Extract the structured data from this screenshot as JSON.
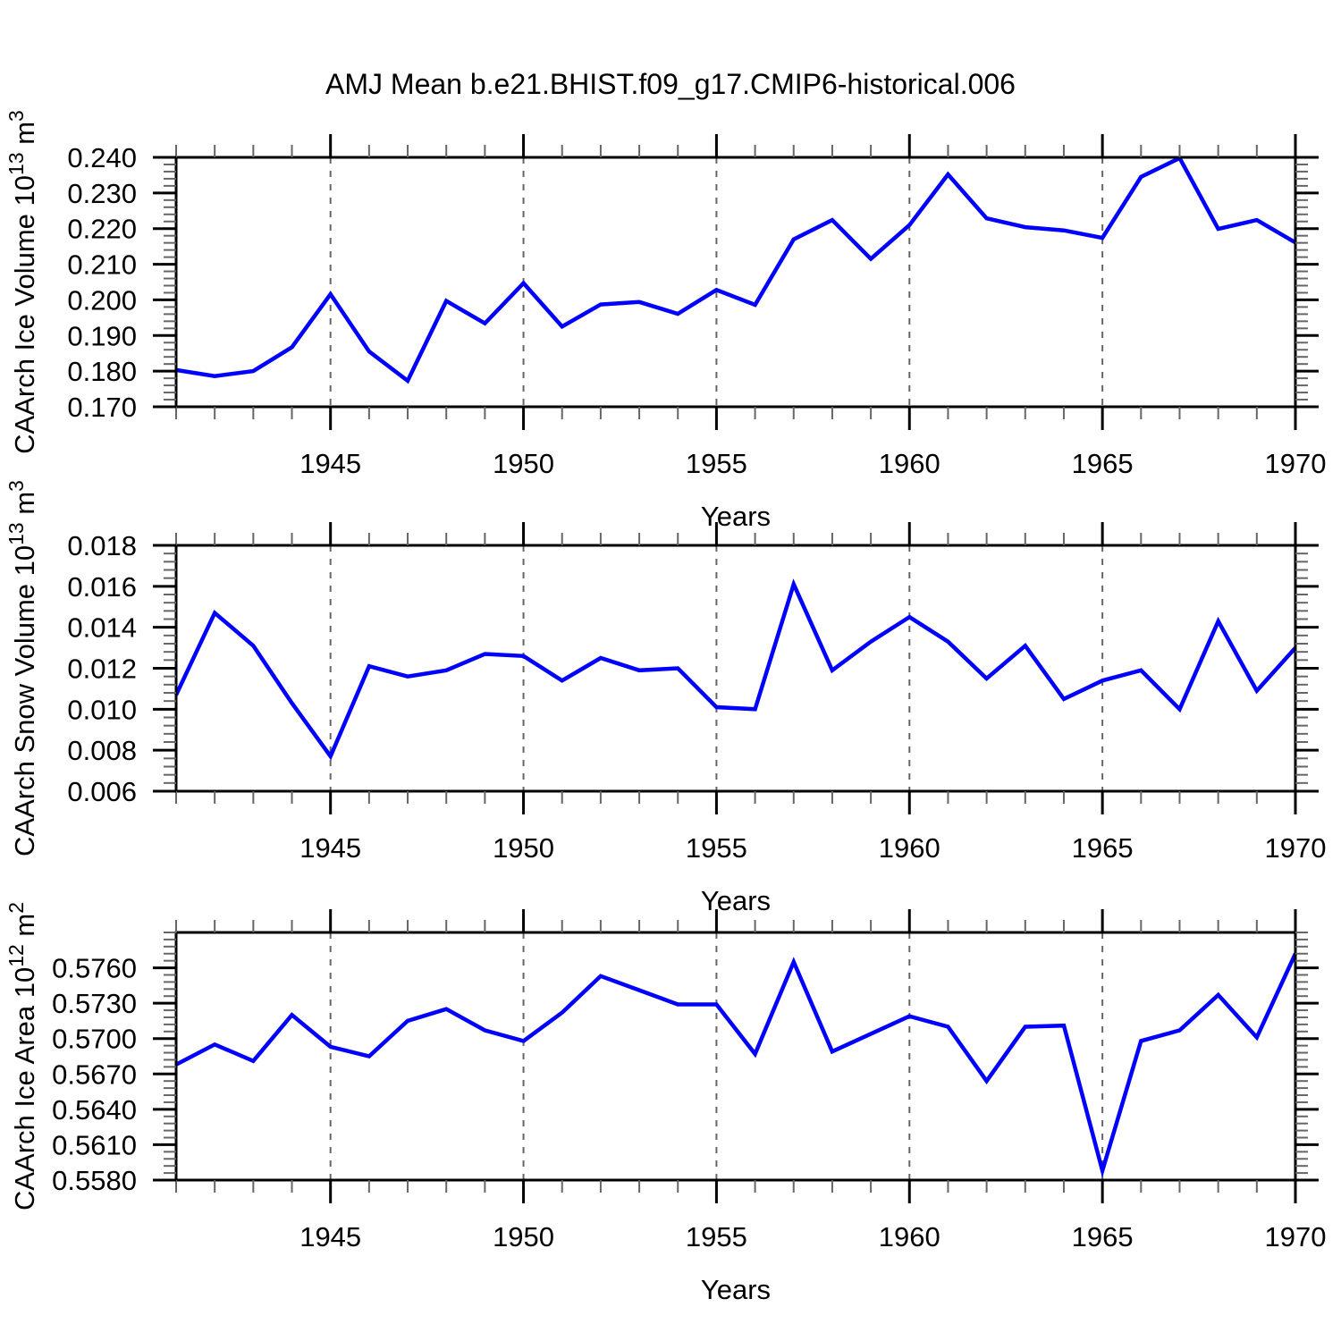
{
  "title": "AMJ Mean b.e21.BHIST.f09_g17.CMIP6-historical.006",
  "xlabel": "Years",
  "line_color": "#0000ff",
  "grid_color": "#666666",
  "chart_data": [
    {
      "type": "line",
      "ylabel": "CAArch Ice Volume 10¹³ m³",
      "ylabel_parts": [
        {
          "text": "CAArch Ice Volume 10"
        },
        {
          "text": "13",
          "sup": true
        },
        {
          "text": " m"
        },
        {
          "text": "3",
          "sup": true
        }
      ],
      "xlabel": "Years",
      "xlim": [
        1941,
        1970
      ],
      "ylim": [
        0.17,
        0.24
      ],
      "yticks": [
        0.17,
        0.18,
        0.19,
        0.2,
        0.21,
        0.22,
        0.23,
        0.24
      ],
      "ytick_labels": [
        "0.170",
        "0.180",
        "0.190",
        "0.200",
        "0.210",
        "0.220",
        "0.230",
        "0.240"
      ],
      "yminor_step": 0.002,
      "xticks": [
        1945,
        1950,
        1955,
        1960,
        1965,
        1970
      ],
      "xtick_labels": [
        "1945",
        "1950",
        "1955",
        "1960",
        "1965",
        "1970"
      ],
      "xminor_step": 1,
      "grid_x": [
        1945,
        1950,
        1955,
        1960,
        1965
      ],
      "x": [
        1941,
        1942,
        1943,
        1944,
        1945,
        1946,
        1947,
        1948,
        1949,
        1950,
        1951,
        1952,
        1953,
        1954,
        1955,
        1956,
        1957,
        1958,
        1959,
        1960,
        1961,
        1962,
        1963,
        1964,
        1965,
        1966,
        1967,
        1968,
        1969,
        1970
      ],
      "values": [
        0.1803,
        0.1786,
        0.18,
        0.1867,
        0.2016,
        0.1855,
        0.1773,
        0.1997,
        0.1934,
        0.2047,
        0.1925,
        0.1987,
        0.1994,
        0.1961,
        0.2028,
        0.1986,
        0.217,
        0.2224,
        0.2115,
        0.221,
        0.2352,
        0.2229,
        0.2204,
        0.2195,
        0.2174,
        0.2345,
        0.2398,
        0.2199,
        0.2224,
        0.2161
      ]
    },
    {
      "type": "line",
      "ylabel": "CAArch Snow Volume 10¹³ m³",
      "ylabel_parts": [
        {
          "text": "CAArch Snow Volume 10"
        },
        {
          "text": "13",
          "sup": true
        },
        {
          "text": " m"
        },
        {
          "text": "3",
          "sup": true
        }
      ],
      "xlabel": "Years",
      "xlim": [
        1941,
        1970
      ],
      "ylim": [
        0.006,
        0.018
      ],
      "yticks": [
        0.006,
        0.008,
        0.01,
        0.012,
        0.014,
        0.016,
        0.018
      ],
      "ytick_labels": [
        "0.006",
        "0.008",
        "0.010",
        "0.012",
        "0.014",
        "0.016",
        "0.018"
      ],
      "yminor_step": 0.0004,
      "xticks": [
        1945,
        1950,
        1955,
        1960,
        1965,
        1970
      ],
      "xtick_labels": [
        "1945",
        "1950",
        "1955",
        "1960",
        "1965",
        "1970"
      ],
      "xminor_step": 1,
      "grid_x": [
        1945,
        1950,
        1955,
        1960,
        1965
      ],
      "x": [
        1941,
        1942,
        1943,
        1944,
        1945,
        1946,
        1947,
        1948,
        1949,
        1950,
        1951,
        1952,
        1953,
        1954,
        1955,
        1956,
        1957,
        1958,
        1959,
        1960,
        1961,
        1962,
        1963,
        1964,
        1965,
        1966,
        1967,
        1968,
        1969,
        1970
      ],
      "values": [
        0.0107,
        0.0147,
        0.0131,
        0.0103,
        0.0077,
        0.0121,
        0.0116,
        0.0119,
        0.0127,
        0.0126,
        0.0114,
        0.0125,
        0.0119,
        0.012,
        0.0101,
        0.01,
        0.0161,
        0.0119,
        0.0133,
        0.0145,
        0.0133,
        0.0115,
        0.0131,
        0.0105,
        0.0114,
        0.0119,
        0.01,
        0.0143,
        0.0109,
        0.013
      ]
    },
    {
      "type": "line",
      "ylabel": "CAArch Ice Area 10¹² m²",
      "ylabel_parts": [
        {
          "text": "CAArch Ice Area 10"
        },
        {
          "text": "12",
          "sup": true
        },
        {
          "text": " m"
        },
        {
          "text": "2",
          "sup": true
        }
      ],
      "xlabel": "Years",
      "xlim": [
        1941,
        1970
      ],
      "ylim": [
        0.558,
        0.579
      ],
      "yticks": [
        0.558,
        0.561,
        0.564,
        0.567,
        0.57,
        0.573,
        0.576
      ],
      "ytick_labels": [
        "0.5580",
        "0.5610",
        "0.5640",
        "0.5670",
        "0.5700",
        "0.5730",
        "0.5760"
      ],
      "yminor_step": 0.0006,
      "xticks": [
        1945,
        1950,
        1955,
        1960,
        1965,
        1970
      ],
      "xtick_labels": [
        "1945",
        "1950",
        "1955",
        "1960",
        "1965",
        "1970"
      ],
      "xminor_step": 1,
      "grid_x": [
        1945,
        1950,
        1955,
        1960,
        1965
      ],
      "x": [
        1941,
        1942,
        1943,
        1944,
        1945,
        1946,
        1947,
        1948,
        1949,
        1950,
        1951,
        1952,
        1953,
        1954,
        1955,
        1956,
        1957,
        1958,
        1959,
        1960,
        1961,
        1962,
        1963,
        1964,
        1965,
        1966,
        1967,
        1968,
        1969,
        1970
      ],
      "values": [
        0.5678,
        0.5695,
        0.5681,
        0.572,
        0.5693,
        0.5685,
        0.5715,
        0.5725,
        0.5707,
        0.5698,
        0.5722,
        0.5753,
        0.5741,
        0.5729,
        0.5729,
        0.5687,
        0.5765,
        0.5689,
        0.5704,
        0.5719,
        0.571,
        0.5664,
        0.571,
        0.5711,
        0.5588,
        0.5698,
        0.5707,
        0.5737,
        0.5701,
        0.5772
      ]
    }
  ]
}
